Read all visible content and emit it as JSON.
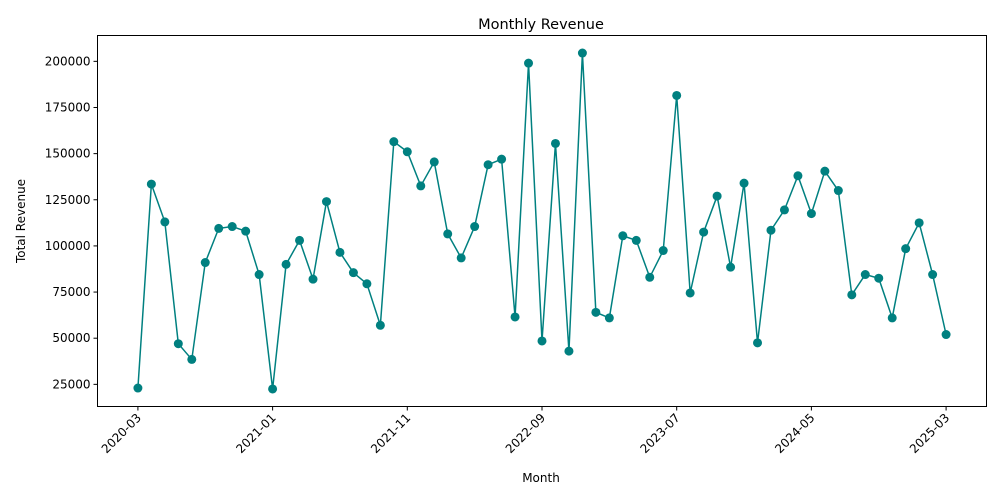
{
  "chart_data": {
    "type": "line",
    "title": "Monthly Revenue",
    "xlabel": "Month",
    "ylabel": "Total Revenue",
    "color": "#008080",
    "x_ticks": [
      "2020-03",
      "2021-01",
      "2021-11",
      "2022-09",
      "2023-07",
      "2024-05",
      "2025-03"
    ],
    "x_start": "2020-03",
    "ylim": [
      13000,
      214000
    ],
    "y_ticks": [
      25000,
      50000,
      75000,
      100000,
      125000,
      150000,
      175000,
      200000
    ],
    "grid": false,
    "series": [
      {
        "x": [
          "2020-03",
          "2020-04",
          "2020-05",
          "2020-06",
          "2020-07",
          "2020-08",
          "2020-09",
          "2020-10",
          "2020-11",
          "2020-12",
          "2021-01",
          "2021-02",
          "2021-03",
          "2021-04",
          "2021-05",
          "2021-06",
          "2021-07",
          "2021-08",
          "2021-09",
          "2021-10",
          "2021-11",
          "2021-12",
          "2022-01",
          "2022-02",
          "2022-03",
          "2022-04",
          "2022-05",
          "2022-06",
          "2022-07",
          "2022-08",
          "2022-09",
          "2022-10",
          "2022-11",
          "2022-12",
          "2023-01",
          "2023-02",
          "2023-03",
          "2023-04",
          "2023-05",
          "2023-06",
          "2023-07",
          "2023-08",
          "2023-09",
          "2023-10",
          "2023-11",
          "2023-12",
          "2024-01",
          "2024-02",
          "2024-03",
          "2024-04",
          "2024-05",
          "2024-06",
          "2024-07",
          "2024-08",
          "2024-09",
          "2024-10",
          "2024-11",
          "2024-12",
          "2025-01",
          "2025-02",
          "2025-03"
        ],
        "values": [
          23000,
          133500,
          113000,
          47000,
          38500,
          91000,
          109500,
          110500,
          108000,
          84500,
          22500,
          90000,
          103000,
          82000,
          124000,
          96500,
          85500,
          79500,
          57000,
          156500,
          151000,
          132500,
          145500,
          106500,
          93500,
          110500,
          144000,
          147000,
          61500,
          199000,
          48500,
          155500,
          43000,
          204500,
          64000,
          61000,
          105500,
          103000,
          83000,
          97500,
          181500,
          74500,
          107500,
          127000,
          88500,
          134000,
          47500,
          108500,
          119500,
          138000,
          117500,
          140500,
          130000,
          73500,
          84500,
          82500,
          61000,
          98500,
          112500,
          84500,
          52000
        ]
      }
    ]
  }
}
